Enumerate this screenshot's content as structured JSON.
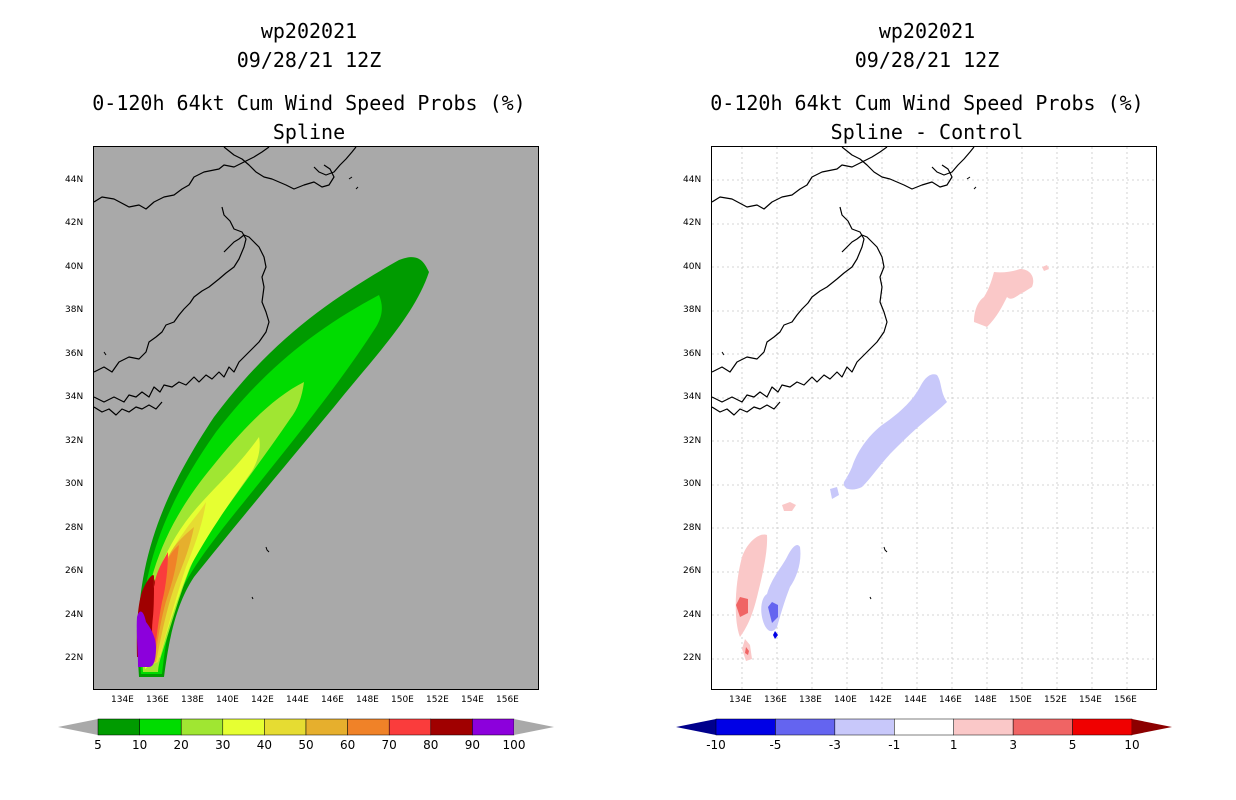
{
  "left_panel": {
    "storm_id": "wp202021",
    "datetime": "09/28/21 12Z",
    "product": "0-120h 64kt Cum Wind Speed Probs (%)",
    "subtitle": "Spline",
    "lat_labels": [
      "44N",
      "42N",
      "40N",
      "38N",
      "36N",
      "34N",
      "32N",
      "30N",
      "28N",
      "26N",
      "24N",
      "22N"
    ],
    "lon_labels": [
      "134E",
      "136E",
      "138E",
      "140E",
      "142E",
      "144E",
      "146E",
      "148E",
      "150E",
      "152E",
      "154E",
      "156E"
    ],
    "colorbar": {
      "labels": [
        "5",
        "10",
        "20",
        "30",
        "40",
        "50",
        "60",
        "70",
        "80",
        "90",
        "100"
      ],
      "colors": [
        "#009b00",
        "#00dc00",
        "#a0e632",
        "#e6ff32",
        "#e6dc32",
        "#e6af2d",
        "#f08228",
        "#fa3c3c",
        "#a00000",
        "#8c00dc"
      ],
      "under_color": "#a9a9a9",
      "over_color": "#a9a9a9"
    },
    "background_color": "#a9a9a9"
  },
  "right_panel": {
    "storm_id": "wp202021",
    "datetime": "09/28/21 12Z",
    "product": "0-120h 64kt Cum Wind Speed Probs (%)",
    "subtitle": "Spline - Control",
    "lat_labels": [
      "44N",
      "42N",
      "40N",
      "38N",
      "36N",
      "34N",
      "32N",
      "30N",
      "28N",
      "26N",
      "24N",
      "22N"
    ],
    "lon_labels": [
      "134E",
      "136E",
      "138E",
      "140E",
      "142E",
      "144E",
      "146E",
      "148E",
      "150E",
      "152E",
      "154E",
      "156E"
    ],
    "colorbar": {
      "labels": [
        "-10",
        "-5",
        "-3",
        "-1",
        "1",
        "3",
        "5",
        "10"
      ],
      "colors": [
        "#0000e6",
        "#6464f0",
        "#c8c8fa",
        "#ffffff",
        "#fac8c8",
        "#f06464",
        "#f00000"
      ],
      "under_color": "#00008c",
      "over_color": "#8c0000"
    },
    "background_color": "#ffffff"
  }
}
